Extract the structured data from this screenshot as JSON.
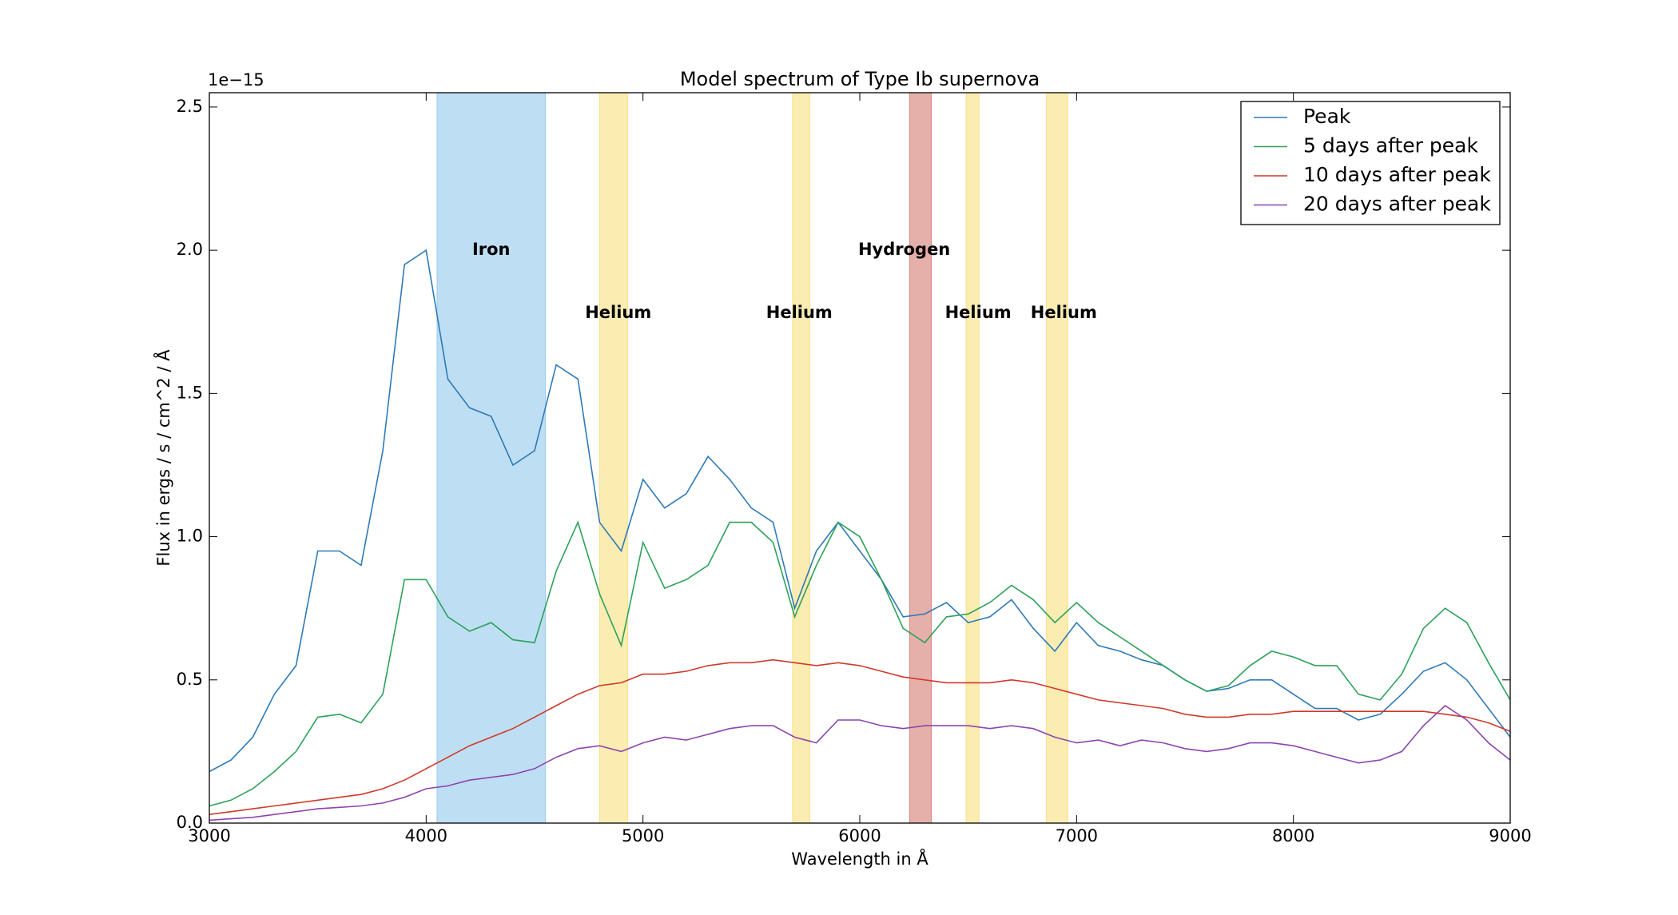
{
  "chart_data": {
    "type": "line",
    "title": "Model spectrum of Type Ib supernova",
    "x_label": "Wavelength in Å",
    "y_label": "Flux in ergs / s / cm^2 / Å",
    "y_offset_label": "1e−15",
    "xlim": [
      3000,
      9000
    ],
    "ylim": [
      0,
      2.55
    ],
    "xticks": [
      3000,
      4000,
      5000,
      6000,
      7000,
      8000,
      9000
    ],
    "yticks": [
      {
        "value": 0,
        "label": "0.0"
      },
      0.5,
      {
        "value": 1,
        "label": "1.0"
      },
      1.5,
      {
        "value": 2,
        "label": "2.0"
      },
      2.5
    ],
    "legend": "upper right",
    "x": [
      3000,
      3100,
      3200,
      3300,
      3400,
      3500,
      3600,
      3700,
      3800,
      3900,
      4000,
      4100,
      4200,
      4300,
      4400,
      4500,
      4600,
      4700,
      4800,
      4900,
      5000,
      5100,
      5200,
      5300,
      5400,
      5500,
      5600,
      5700,
      5800,
      5900,
      6000,
      6100,
      6200,
      6300,
      6400,
      6500,
      6600,
      6700,
      6800,
      6900,
      7000,
      7100,
      7200,
      7300,
      7400,
      7500,
      7600,
      7700,
      7800,
      7900,
      8000,
      8100,
      8200,
      8300,
      8400,
      8500,
      8600,
      8700,
      8800,
      8900,
      9000
    ],
    "series": [
      {
        "name": "Peak",
        "color": "#2e7ab8",
        "values": [
          0.18,
          0.22,
          0.3,
          0.45,
          0.55,
          0.95,
          0.95,
          0.9,
          1.3,
          1.95,
          2.0,
          1.55,
          1.45,
          1.42,
          1.25,
          1.3,
          1.6,
          1.55,
          1.05,
          0.95,
          1.2,
          1.1,
          1.15,
          1.28,
          1.2,
          1.1,
          1.05,
          0.75,
          0.95,
          1.05,
          0.95,
          0.85,
          0.72,
          0.73,
          0.77,
          0.7,
          0.72,
          0.78,
          0.68,
          0.6,
          0.7,
          0.62,
          0.6,
          0.57,
          0.55,
          0.5,
          0.46,
          0.47,
          0.5,
          0.5,
          0.45,
          0.4,
          0.4,
          0.36,
          0.38,
          0.45,
          0.53,
          0.56,
          0.5,
          0.4,
          0.3
        ]
      },
      {
        "name": "5 days after peak",
        "color": "#2ca25a",
        "values": [
          0.06,
          0.08,
          0.12,
          0.18,
          0.25,
          0.37,
          0.38,
          0.35,
          0.45,
          0.85,
          0.85,
          0.72,
          0.67,
          0.7,
          0.64,
          0.63,
          0.88,
          1.05,
          0.8,
          0.62,
          0.98,
          0.82,
          0.85,
          0.9,
          1.05,
          1.05,
          0.98,
          0.72,
          0.9,
          1.05,
          1.0,
          0.85,
          0.68,
          0.63,
          0.72,
          0.73,
          0.77,
          0.83,
          0.78,
          0.7,
          0.77,
          0.7,
          0.65,
          0.6,
          0.55,
          0.5,
          0.46,
          0.48,
          0.55,
          0.6,
          0.58,
          0.55,
          0.55,
          0.45,
          0.43,
          0.52,
          0.68,
          0.75,
          0.7,
          0.56,
          0.43
        ]
      },
      {
        "name": "10 days after peak",
        "color": "#d0392b",
        "values": [
          0.03,
          0.04,
          0.05,
          0.06,
          0.07,
          0.08,
          0.09,
          0.1,
          0.12,
          0.15,
          0.19,
          0.23,
          0.27,
          0.3,
          0.33,
          0.37,
          0.41,
          0.45,
          0.48,
          0.49,
          0.52,
          0.52,
          0.53,
          0.55,
          0.56,
          0.56,
          0.57,
          0.56,
          0.55,
          0.56,
          0.55,
          0.53,
          0.51,
          0.5,
          0.49,
          0.49,
          0.49,
          0.5,
          0.49,
          0.47,
          0.45,
          0.43,
          0.42,
          0.41,
          0.4,
          0.38,
          0.37,
          0.37,
          0.38,
          0.38,
          0.39,
          0.39,
          0.39,
          0.39,
          0.39,
          0.39,
          0.39,
          0.38,
          0.37,
          0.35,
          0.32
        ]
      },
      {
        "name": "20 days after peak",
        "color": "#8e44ad",
        "values": [
          0.01,
          0.015,
          0.02,
          0.03,
          0.04,
          0.05,
          0.055,
          0.06,
          0.07,
          0.09,
          0.12,
          0.13,
          0.15,
          0.16,
          0.17,
          0.19,
          0.23,
          0.26,
          0.27,
          0.25,
          0.28,
          0.3,
          0.29,
          0.31,
          0.33,
          0.34,
          0.34,
          0.3,
          0.28,
          0.36,
          0.36,
          0.34,
          0.33,
          0.34,
          0.34,
          0.34,
          0.33,
          0.34,
          0.33,
          0.3,
          0.28,
          0.29,
          0.27,
          0.29,
          0.28,
          0.26,
          0.25,
          0.26,
          0.28,
          0.28,
          0.27,
          0.25,
          0.23,
          0.21,
          0.22,
          0.25,
          0.34,
          0.41,
          0.36,
          0.28,
          0.22
        ]
      }
    ],
    "regions": [
      {
        "xmin": 4050,
        "xmax": 4550,
        "color": "#5dade2"
      },
      {
        "xmin": 4800,
        "xmax": 4930,
        "color": "#f4d03f"
      },
      {
        "xmin": 5690,
        "xmax": 5770,
        "color": "#f4d03f"
      },
      {
        "xmin": 6230,
        "xmax": 6330,
        "color": "#c0392b"
      },
      {
        "xmin": 6490,
        "xmax": 6550,
        "color": "#f4d03f"
      },
      {
        "xmin": 6860,
        "xmax": 6960,
        "color": "#f4d03f"
      }
    ],
    "annotations": [
      {
        "text": "Iron",
        "x": 4300,
        "y": 2.0
      },
      {
        "text": "Helium",
        "x": 4886,
        "y": 1.78
      },
      {
        "text": "Helium",
        "x": 5721,
        "y": 1.78
      },
      {
        "text": "Hydrogen",
        "x": 6205,
        "y": 2.0
      },
      {
        "text": "Helium",
        "x": 6546,
        "y": 1.78
      },
      {
        "text": "Helium",
        "x": 6941,
        "y": 1.78
      }
    ]
  }
}
